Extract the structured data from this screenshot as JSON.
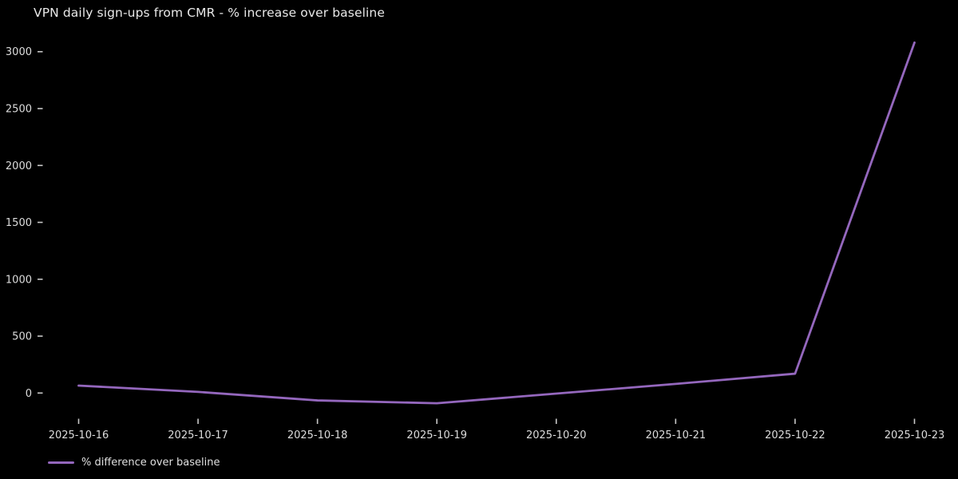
{
  "chart": {
    "title": "VPN daily sign-ups from CMR - % increase over baseline",
    "legend": {
      "label": "% difference over baseline"
    },
    "colors": {
      "background": "#000000",
      "line": "#9467bd",
      "title_text": "#e8e8e8",
      "tick_text": "#dcdcdc",
      "tick_mark": "#c8c8c8"
    }
  },
  "chart_data": {
    "type": "line",
    "title": "VPN daily sign-ups from CMR - % increase over baseline",
    "xlabel": "",
    "ylabel": "",
    "categories": [
      "2025-10-16",
      "2025-10-17",
      "2025-10-18",
      "2025-10-19",
      "2025-10-20",
      "2025-10-21",
      "2025-10-22",
      "2025-10-23"
    ],
    "series": [
      {
        "name": "% difference over baseline",
        "values": [
          65,
          10,
          -65,
          -90,
          -5,
          80,
          170,
          3080
        ]
      }
    ],
    "yticks": [
      0,
      500,
      1000,
      1500,
      2000,
      2500,
      3000
    ],
    "ylim": [
      -250,
      3230
    ],
    "grid": false,
    "legend_position": "lower-left-below-axis"
  }
}
